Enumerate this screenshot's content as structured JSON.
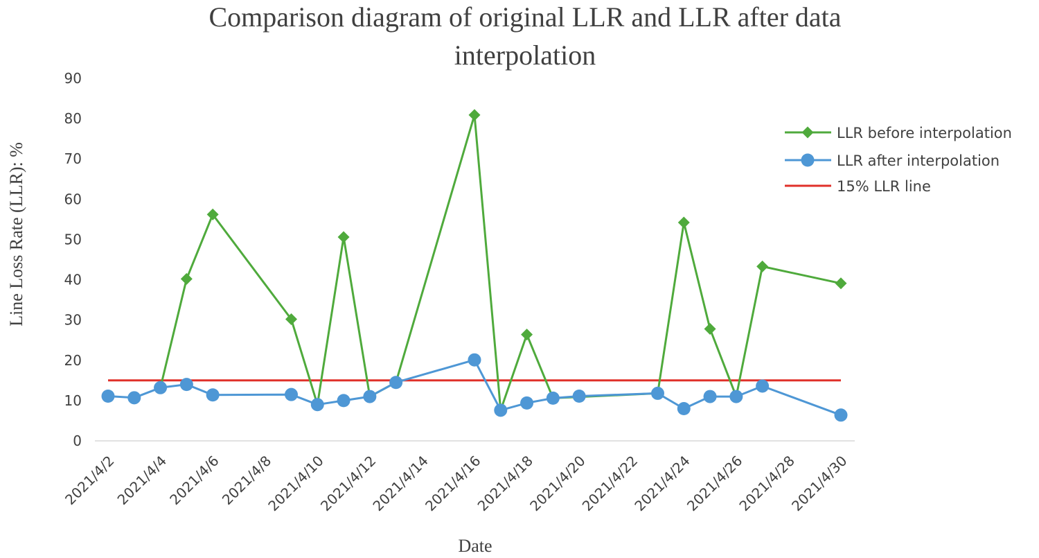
{
  "chart_data": {
    "type": "line",
    "title_lines": [
      "Comparison diagram of original LLR and LLR after data",
      "interpolation"
    ],
    "xlabel": "Date",
    "ylabel": "Line Loss Rate (LLR): %",
    "ylim": [
      0,
      90
    ],
    "yticks": [
      0,
      10,
      20,
      30,
      40,
      50,
      60,
      70,
      80,
      90
    ],
    "xlim_day": [
      2,
      30
    ],
    "xtick_days": [
      2,
      4,
      6,
      8,
      10,
      12,
      14,
      16,
      18,
      20,
      22,
      24,
      26,
      28,
      30
    ],
    "xtick_labels": [
      "2021/4/2",
      "2021/4/4",
      "2021/4/6",
      "2021/4/8",
      "2021/4/10",
      "2021/4/12",
      "2021/4/14",
      "2021/4/16",
      "2021/4/18",
      "2021/4/20",
      "2021/4/22",
      "2021/4/24",
      "2021/4/26",
      "2021/4/28",
      "2021/4/30"
    ],
    "grid": false,
    "legend_position": "right",
    "series": [
      {
        "name": "LLR before interpolation",
        "color": "#4faa3c",
        "marker": "diamond",
        "days": [
          4,
          5,
          6,
          9,
          10,
          11,
          12,
          13,
          16,
          17,
          18,
          19,
          23,
          24,
          25,
          26,
          27,
          30
        ],
        "values": [
          13.2,
          40.2,
          56.2,
          30.2,
          9.0,
          50.6,
          11.0,
          14.5,
          80.9,
          7.6,
          26.4,
          10.6,
          11.8,
          54.2,
          27.8,
          11.0,
          43.3,
          39.1
        ]
      },
      {
        "name": "LLR after interpolation",
        "color": "#4e97d5",
        "marker": "circle",
        "days": [
          2,
          3,
          4,
          5,
          6,
          9,
          10,
          11,
          12,
          13,
          16,
          17,
          18,
          19,
          20,
          23,
          24,
          25,
          26,
          27,
          30
        ],
        "values": [
          11.1,
          10.7,
          13.2,
          14.0,
          11.4,
          11.5,
          9.0,
          10.0,
          11.0,
          14.5,
          20.1,
          7.6,
          9.4,
          10.6,
          11.1,
          11.8,
          8.0,
          11.0,
          11.0,
          13.6,
          6.4
        ]
      },
      {
        "name": "15% LLR line",
        "color": "#e0302a",
        "marker": "none",
        "days": [
          2,
          30
        ],
        "values": [
          15,
          15
        ]
      }
    ]
  }
}
